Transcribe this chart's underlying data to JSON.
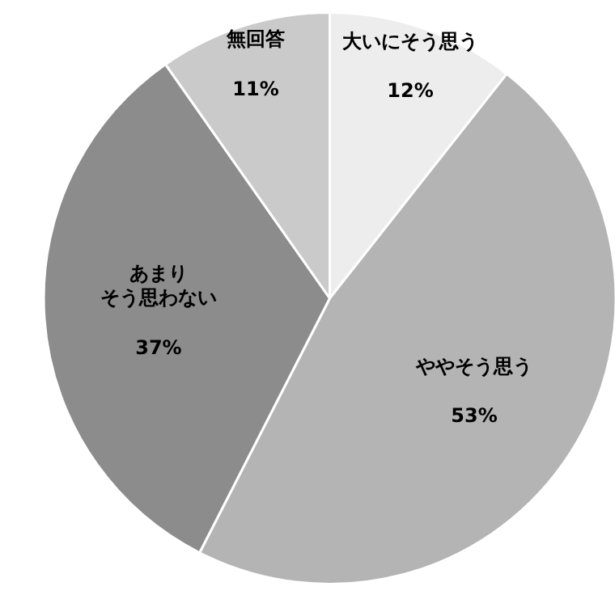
{
  "chart_data": {
    "type": "pie",
    "categories": [
      "大いにそう思う",
      "ややそう思う",
      "あまりそう思わない",
      "無回答"
    ],
    "values": [
      12,
      53,
      37,
      11
    ],
    "value_labels": [
      "12%",
      "53%",
      "37%",
      "11%"
    ],
    "colors": [
      "#ededed",
      "#b4b4b4",
      "#8c8c8c",
      "#cacaca"
    ]
  }
}
